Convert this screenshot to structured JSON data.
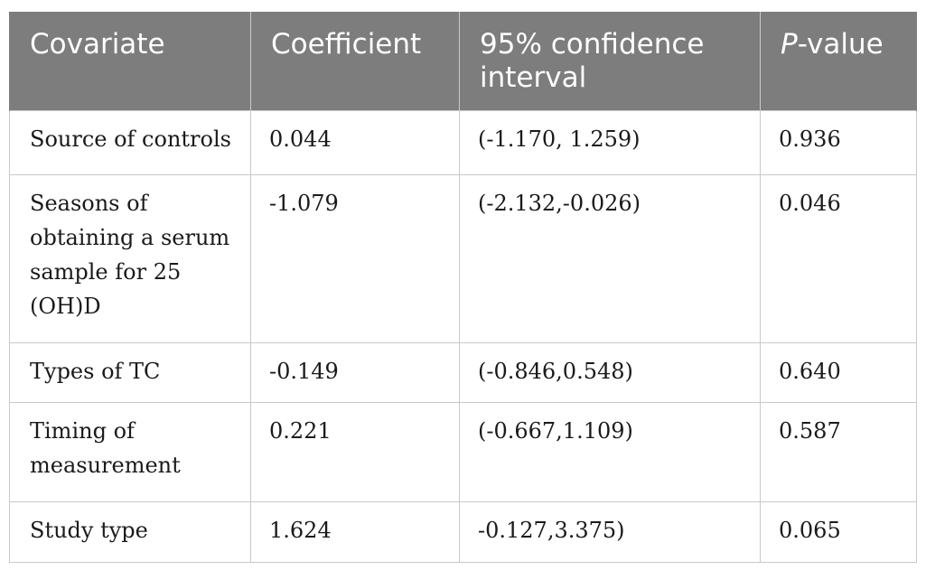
{
  "table": {
    "headers": {
      "covariate": "Covariate",
      "coefficient": "Coefficient",
      "ci": "95% confidence interval",
      "p_prefix": "P",
      "p_suffix": "-value"
    },
    "rows": [
      {
        "covariate": "Source of controls",
        "coefficient": "0.044",
        "ci": "(-1.170, 1.259)",
        "p": "0.936"
      },
      {
        "covariate": "Seasons of obtaining a serum sample for 25 (OH)D",
        "coefficient": "-1.079",
        "ci": "(-2.132,-0.026)",
        "p": "0.046"
      },
      {
        "covariate": "Types of TC",
        "coefficient": "-0.149",
        "ci": "(-0.846,0.548)",
        "p": "0.640"
      },
      {
        "covariate": "Timing of measurement",
        "coefficient": "0.221",
        "ci": "(-0.667,1.109)",
        "p": "0.587"
      },
      {
        "covariate": "Study type",
        "coefficient": "1.624",
        "ci": "-0.127,3.375)",
        "p": "0.065"
      }
    ]
  },
  "colors": {
    "header_bg": "#7d7d7d",
    "header_text": "#ffffff",
    "grid": "#c9c9c9"
  }
}
